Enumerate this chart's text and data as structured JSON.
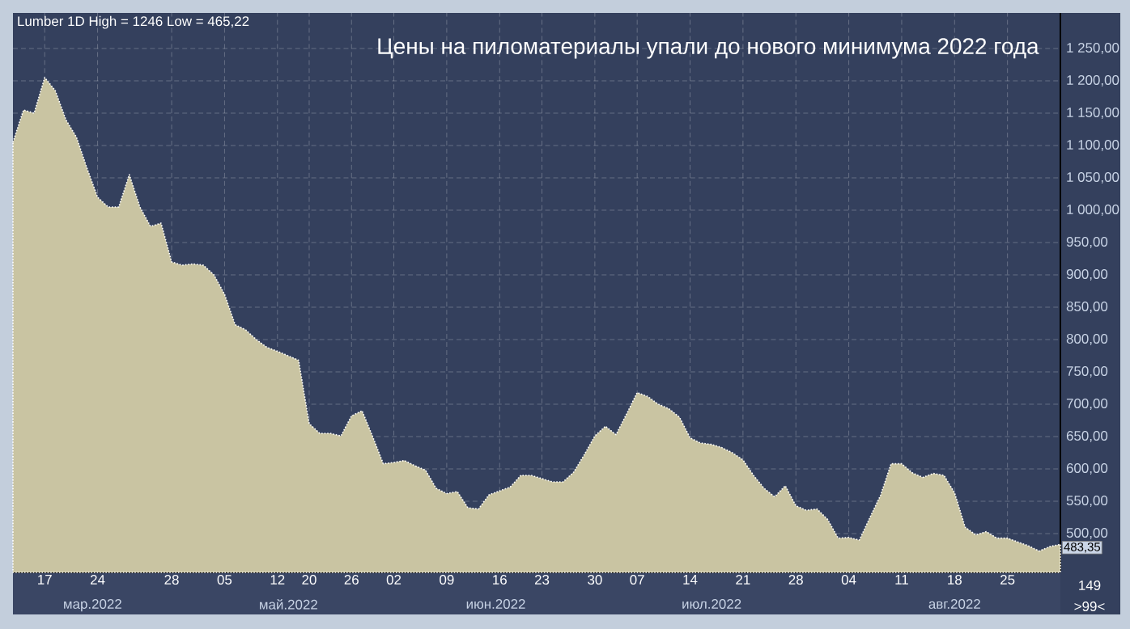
{
  "chart_data": {
    "type": "area",
    "title": "Цены на пиломатериалы упали до нового минимума 2022 года",
    "subtitle": "Lumber 1D  High = 1246 Low = 465,22",
    "color": "#c9c4a2",
    "categories": [
      null,
      null,
      null,
      "17",
      null,
      null,
      null,
      null,
      "24",
      null,
      null,
      null,
      null,
      null,
      null,
      "28",
      null,
      null,
      null,
      null,
      "05",
      null,
      null,
      null,
      null,
      "12",
      null,
      null,
      "20",
      null,
      null,
      null,
      "26",
      null,
      null,
      null,
      "02",
      null,
      null,
      null,
      null,
      "09",
      null,
      null,
      null,
      null,
      "16",
      null,
      null,
      null,
      "23",
      null,
      null,
      null,
      null,
      "30",
      null,
      null,
      null,
      "07",
      null,
      null,
      null,
      null,
      "14",
      null,
      null,
      null,
      null,
      "21",
      null,
      null,
      null,
      null,
      "28",
      null,
      null,
      null,
      null,
      "04",
      null,
      null,
      null,
      null,
      "11",
      null,
      null,
      null,
      null,
      "18",
      null,
      null,
      null,
      null,
      "25",
      null,
      null,
      null,
      null,
      null
    ],
    "values": [
      1105,
      1155,
      1150,
      1205,
      1185,
      1140,
      1113,
      1065,
      1020,
      1005,
      1005,
      1055,
      1005,
      975,
      980,
      920,
      915,
      917,
      915,
      900,
      870,
      823,
      815,
      800,
      788,
      782,
      775,
      768,
      670,
      655,
      655,
      651,
      682,
      690,
      650,
      608,
      610,
      613,
      605,
      598,
      570,
      562,
      565,
      540,
      538,
      560,
      566,
      572,
      590,
      590,
      585,
      580,
      580,
      595,
      622,
      651,
      666,
      653,
      685,
      718,
      712,
      700,
      693,
      680,
      648,
      640,
      638,
      633,
      625,
      614,
      590,
      570,
      557,
      574,
      543,
      536,
      538,
      522,
      493,
      494,
      490,
      525,
      559,
      608,
      608,
      594,
      587,
      593,
      590,
      563,
      510,
      498,
      503,
      493,
      493,
      487,
      481,
      473,
      480,
      483.35
    ],
    "ylim": [
      440,
      1305
    ],
    "yticks": [
      {
        "value": 500,
        "label": "500,00"
      },
      {
        "value": 550,
        "label": "550,00"
      },
      {
        "value": 600,
        "label": "600,00"
      },
      {
        "value": 650,
        "label": "650,00"
      },
      {
        "value": 700,
        "label": "700,00"
      },
      {
        "value": 750,
        "label": "750,00"
      },
      {
        "value": 800,
        "label": "800,00"
      },
      {
        "value": 850,
        "label": "850,00"
      },
      {
        "value": 900,
        "label": "900,00"
      },
      {
        "value": 950,
        "label": "950,00"
      },
      {
        "value": 1000,
        "label": "1 000,00"
      },
      {
        "value": 1050,
        "label": "1 050,00"
      },
      {
        "value": 1100,
        "label": "1 100,00"
      },
      {
        "value": 1150,
        "label": "1 150,00"
      },
      {
        "value": 1200,
        "label": "1 200,00"
      },
      {
        "value": 1250,
        "label": "1 250,00"
      }
    ],
    "grid": true,
    "annotations": [
      "483,35",
      "мар.2022",
      "май.2022",
      "июн.2022",
      "июл.2022",
      "авг.2022",
      "149",
      ">99<"
    ]
  }
}
